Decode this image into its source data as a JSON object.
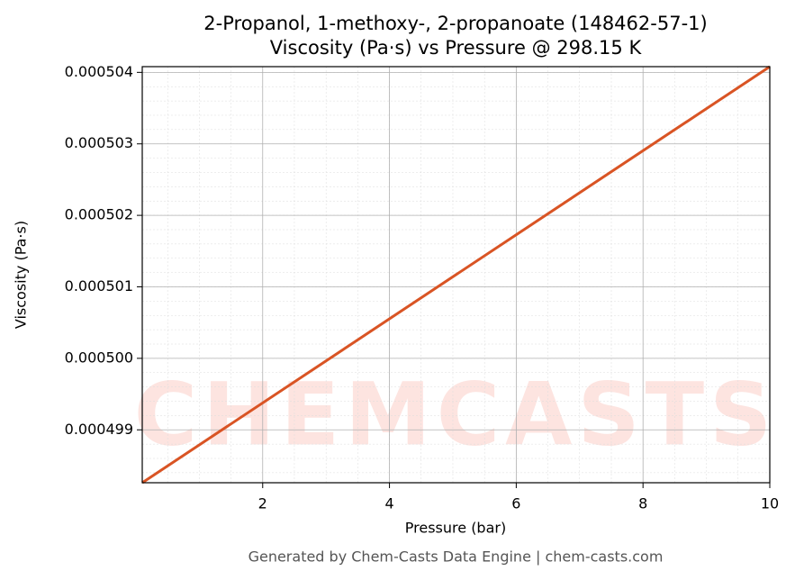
{
  "chart_data": {
    "type": "line",
    "title": "2-Propanol, 1-methoxy-, 2-propanoate (148462-57-1)",
    "subtitle": "Viscosity (Pa·s) vs Pressure @ 298.15 K",
    "x_label": "Pressure (bar)",
    "y_label": "Viscosity (Pa·s)",
    "x": [
      0.1,
      10
    ],
    "series": [
      {
        "name": "Viscosity",
        "color": "#d95424",
        "values": [
          0.00049826,
          0.00050408
        ]
      }
    ],
    "xlim": [
      0.1,
      10
    ],
    "xticks": [
      2,
      4,
      6,
      8,
      10
    ],
    "ylim": [
      0.00049826,
      0.00050408
    ],
    "yticks": [
      0.000499,
      {
        "value": 0.0005,
        "label": "0.000500"
      },
      0.000501,
      0.000502,
      0.000503,
      0.000504
    ],
    "grid": true,
    "watermark": "CHEMCASTS",
    "footer": "Generated by Chem-Casts Data Engine | chem-casts.com"
  }
}
